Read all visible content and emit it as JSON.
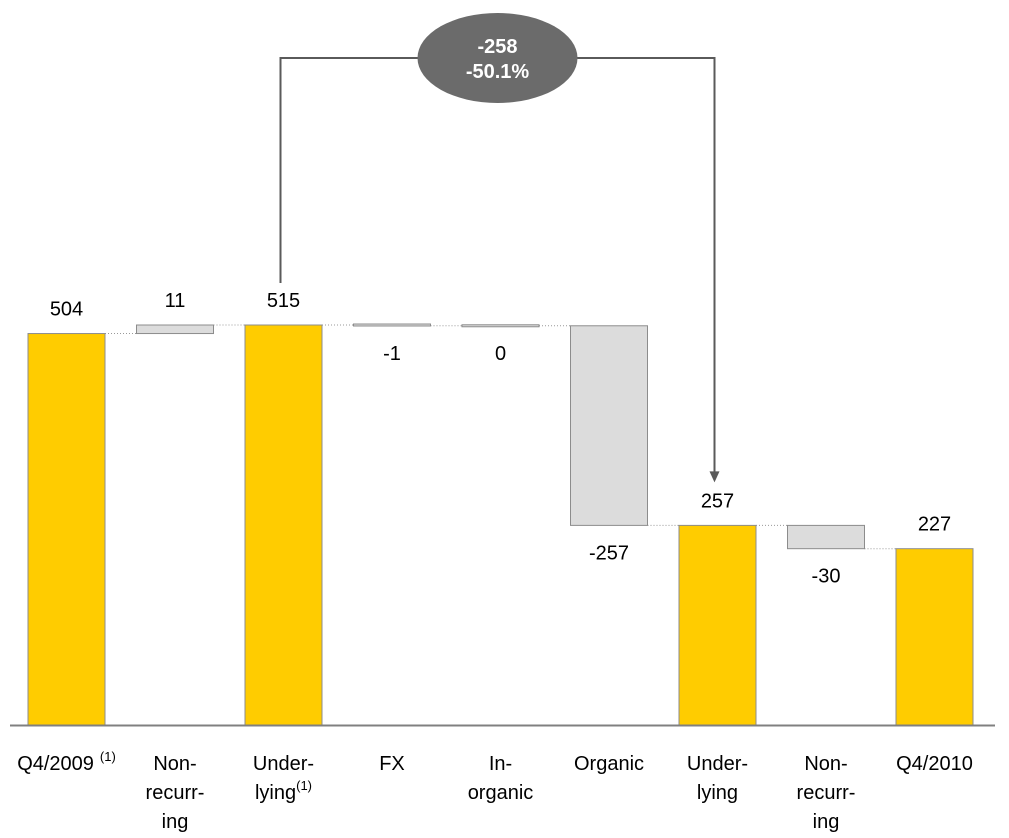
{
  "chart_data": {
    "type": "bar",
    "subtype": "waterfall",
    "title": "",
    "xlabel": "",
    "ylabel": "",
    "ylim": [
      0,
      520
    ],
    "grid": false,
    "legend": "none",
    "categories": [
      {
        "lines": [
          "Q4/2009"
        ],
        "sup": "(1)",
        "sup_inline": true
      },
      {
        "lines": [
          "Non-",
          "recurr-",
          "ing"
        ],
        "sup": ""
      },
      {
        "lines": [
          "Under-",
          "lying"
        ],
        "sup": "(1)",
        "sup_inline": false
      },
      {
        "lines": [
          "FX"
        ],
        "sup": ""
      },
      {
        "lines": [
          "In-",
          "organic"
        ],
        "sup": ""
      },
      {
        "lines": [
          "Organic"
        ],
        "sup": ""
      },
      {
        "lines": [
          "Under-",
          "lying"
        ],
        "sup": ""
      },
      {
        "lines": [
          "Non-",
          "recurr-",
          "ing"
        ],
        "sup": ""
      },
      {
        "lines": [
          "Q4/2010"
        ],
        "sup": ""
      }
    ],
    "bars": [
      {
        "kind": "total",
        "start": 0,
        "end": 504,
        "label": "504"
      },
      {
        "kind": "delta",
        "start": 504,
        "end": 515,
        "label": "11"
      },
      {
        "kind": "total",
        "start": 0,
        "end": 515,
        "label": "515"
      },
      {
        "kind": "delta",
        "start": 515,
        "end": 514,
        "label": "-1"
      },
      {
        "kind": "delta",
        "start": 514,
        "end": 514,
        "label": "0"
      },
      {
        "kind": "delta",
        "start": 514,
        "end": 257,
        "label": "-257"
      },
      {
        "kind": "total",
        "start": 0,
        "end": 257,
        "label": "257"
      },
      {
        "kind": "delta",
        "start": 257,
        "end": 227,
        "label": "-30"
      },
      {
        "kind": "total",
        "start": 0,
        "end": 227,
        "label": "227"
      }
    ],
    "comparison": {
      "from_index": 2,
      "to_index": 6,
      "label_value": "-258",
      "label_percent": "-50.1%"
    },
    "colors": {
      "total": "#ffcc00",
      "delta": "#dcdcdc",
      "bar_border": "#8c8c8c",
      "bubble": "#6b6b6b",
      "bracket": "#5a5a5a",
      "axis": "#808080"
    }
  }
}
